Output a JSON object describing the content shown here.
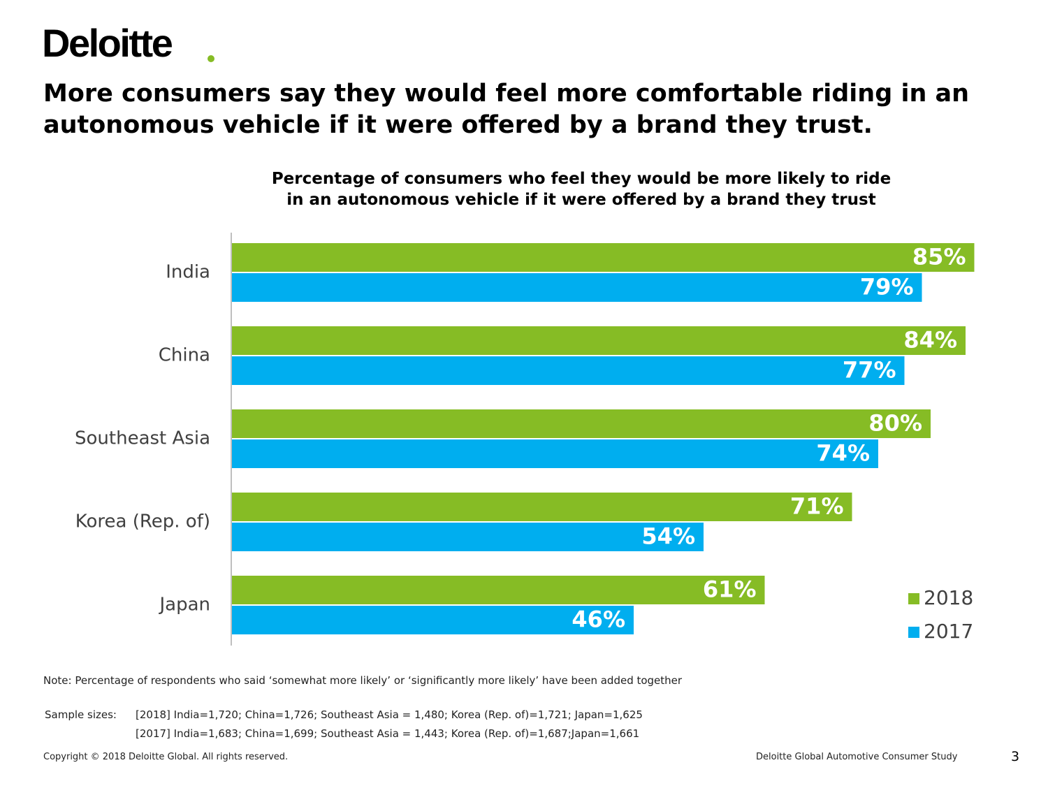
{
  "brand": {
    "name": "Deloitte",
    "accent_color": "#86BC25"
  },
  "headline": "More consumers say they would feel more comfortable riding in an autonomous vehicle if it were offered by a brand they trust.",
  "chart_data": {
    "type": "bar",
    "orientation": "horizontal",
    "title": "Percentage of consumers who feel they would be more likely to ride in an autonomous vehicle if it were offered by a brand they trust",
    "title_lines": [
      "Percentage of consumers who feel they would be more likely to ride",
      "in an autonomous vehicle if it were offered by a brand they trust"
    ],
    "categories": [
      "India",
      "China",
      "Southeast Asia",
      "Korea (Rep. of)",
      "Japan"
    ],
    "series": [
      {
        "name": "2018",
        "color": "#86BC25",
        "values": [
          85,
          84,
          80,
          71,
          61
        ]
      },
      {
        "name": "2017",
        "color": "#00AEEF",
        "values": [
          79,
          77,
          74,
          54,
          46
        ]
      }
    ],
    "value_suffix": "%",
    "xlim": [
      0,
      100
    ],
    "xlabel": "",
    "ylabel": "",
    "grid": false,
    "legend_position": "bottom-right"
  },
  "note": "Note: Percentage of respondents who said ‘somewhat more likely’ or ‘significantly more likely’ have been added together",
  "sample_sizes": {
    "label": "Sample sizes:",
    "lines": [
      "[2018] India=1,720; China=1,726; Southeast Asia = 1,480; Korea (Rep. of)=1,721; Japan=1,625",
      "[2017] India=1,683; China=1,699; Southeast Asia = 1,443; Korea (Rep. of)=1,687;Japan=1,661"
    ]
  },
  "footer": {
    "copyright": "Copyright © 2018 Deloitte Global. All rights reserved.",
    "study": "Deloitte Global Automotive Consumer Study",
    "page_number": "3"
  }
}
